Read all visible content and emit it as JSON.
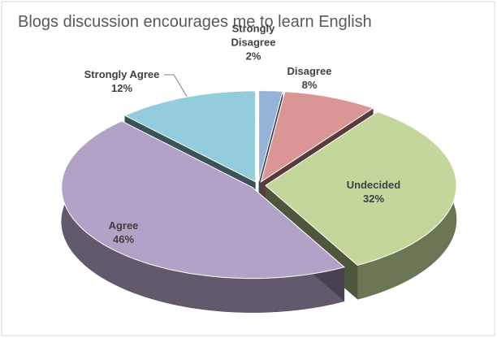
{
  "chart_data": {
    "type": "pie",
    "title": "Blogs discussion encourages me to learn English",
    "categories": [
      "Strongly Disagree",
      "Disagree",
      "Undecided",
      "Agree",
      "Strongly Agree"
    ],
    "values": [
      2,
      8,
      32,
      46,
      12
    ],
    "value_labels": [
      "2%",
      "8%",
      "32%",
      "46%",
      "12%"
    ],
    "colors": [
      "#95b3d7",
      "#d99694",
      "#c3d69b",
      "#b3a2c7",
      "#93cddd"
    ]
  }
}
